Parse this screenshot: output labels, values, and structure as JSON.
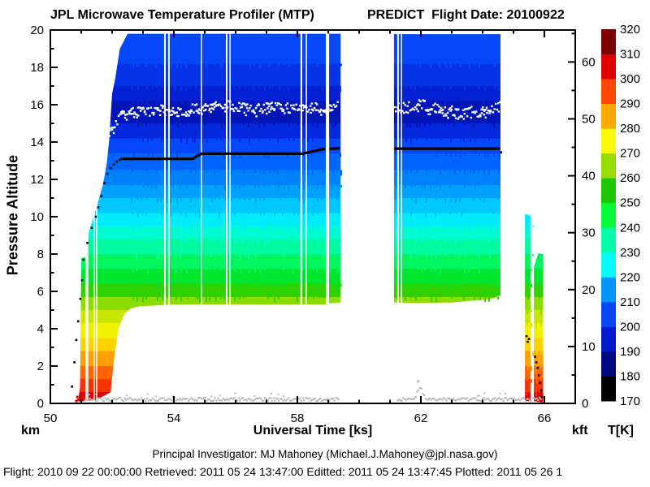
{
  "titles": {
    "left": "JPL Microwave Temperature Profiler (MTP)",
    "right": "PREDICT  Flight Date: 20100922"
  },
  "footer": {
    "line1": "Principal Investigator: MJ Mahoney (Michael.J.Mahoney@jpl.nasa.gov)",
    "line2": "Flight: 2010 09 22 00:00:00   Retrieved: 2011 05 24 13:47:00   Editted: 2011 05 24 13:47:45  Plotted: 2011 05 26 1"
  },
  "chart_data": {
    "type": "heatmap",
    "title": "JPL Microwave Temperature Profiler (MTP) - PREDICT Flight Date: 20100922",
    "x_axis": {
      "label": "Universal Time [ks]",
      "range": [
        50,
        67
      ],
      "major_ticks": [
        50,
        54,
        58,
        62,
        66
      ],
      "minor_step": 1
    },
    "y_axis_left": {
      "label": "Pressure Altitude",
      "unit": "km",
      "range": [
        0,
        20
      ],
      "major_ticks": [
        0,
        2,
        4,
        6,
        8,
        10,
        12,
        14,
        16,
        18,
        20
      ],
      "minor_step": 1
    },
    "y_axis_right": {
      "unit": "kft",
      "range": [
        0,
        65.6
      ],
      "major_ticks": [
        0,
        10,
        20,
        30,
        40,
        50,
        60
      ],
      "minor_step": 5
    },
    "colorbar": {
      "label": "T[K]",
      "range": [
        170,
        320
      ],
      "ticks": [
        170,
        180,
        190,
        200,
        210,
        220,
        230,
        240,
        250,
        260,
        270,
        280,
        290,
        300,
        310,
        320
      ],
      "band_colors_bottom_to_top": [
        "#000000",
        "#000882",
        "#0019cd",
        "#0747fa",
        "#0096ff",
        "#00ffff",
        "#00ffaa",
        "#00ff37",
        "#1ec800",
        "#96dc00",
        "#fafa00",
        "#ffa800",
        "#ff4800",
        "#e10000",
        "#7d0000"
      ]
    },
    "altitude_bands": [
      [
        20.0,
        18.2,
        "#0747fa"
      ],
      [
        18.2,
        17.0,
        "#0533e8"
      ],
      [
        17.0,
        16.2,
        "#0320d2"
      ],
      [
        16.2,
        15.0,
        "#0215b6"
      ],
      [
        15.0,
        14.2,
        "#0428dc"
      ],
      [
        14.2,
        13.4,
        "#0747fa"
      ],
      [
        13.4,
        12.5,
        "#0064ff"
      ],
      [
        12.5,
        11.7,
        "#0082ff"
      ],
      [
        11.7,
        11.0,
        "#00a0ff"
      ],
      [
        11.0,
        10.2,
        "#00c8ff"
      ],
      [
        10.2,
        9.5,
        "#00ecfa"
      ],
      [
        9.5,
        8.8,
        "#00fad2"
      ],
      [
        8.8,
        8.0,
        "#00faa0"
      ],
      [
        8.0,
        7.2,
        "#00f55f"
      ],
      [
        7.2,
        6.4,
        "#00e62e"
      ],
      [
        6.4,
        5.7,
        "#2fd200"
      ],
      [
        5.7,
        5.0,
        "#8cdc00"
      ],
      [
        5.0,
        4.3,
        "#c8e600"
      ],
      [
        4.3,
        3.5,
        "#f0f000"
      ],
      [
        3.5,
        2.8,
        "#ffd200"
      ],
      [
        2.8,
        2.0,
        "#ffa000"
      ],
      [
        2.0,
        1.3,
        "#ff6400"
      ],
      [
        1.3,
        0.6,
        "#f53200"
      ],
      [
        0.6,
        0.0,
        "#e10000"
      ]
    ],
    "segments": [
      {
        "name": "ascent-and-cruise-block",
        "polygon": [
          [
            50.9,
            0.1
          ],
          [
            50.96,
            0.9
          ],
          [
            51.0,
            7.8
          ],
          [
            51.12,
            7.8
          ],
          [
            51.25,
            9.2
          ],
          [
            51.4,
            10.0
          ],
          [
            51.55,
            10.8
          ],
          [
            51.7,
            11.7
          ],
          [
            51.82,
            12.8
          ],
          [
            51.9,
            14.0
          ],
          [
            52.0,
            16.6
          ],
          [
            52.1,
            17.4
          ],
          [
            52.25,
            19.0
          ],
          [
            52.5,
            19.8
          ],
          [
            58.92,
            19.8
          ],
          [
            58.92,
            5.3
          ],
          [
            54.0,
            5.3
          ],
          [
            52.9,
            5.2
          ],
          [
            52.62,
            5.1
          ],
          [
            52.4,
            4.8
          ],
          [
            52.2,
            4.0
          ],
          [
            52.05,
            2.2
          ],
          [
            51.95,
            0.6
          ],
          [
            51.5,
            0.2
          ],
          [
            51.1,
            0.12
          ]
        ]
      },
      {
        "name": "cruise-tail-strip",
        "polygon": [
          [
            59.03,
            19.8
          ],
          [
            59.4,
            19.8
          ],
          [
            59.4,
            5.4
          ],
          [
            59.03,
            5.35
          ]
        ]
      },
      {
        "name": "second-cruise-block",
        "polygon": [
          [
            61.13,
            19.78
          ],
          [
            64.58,
            19.78
          ],
          [
            64.58,
            5.8
          ],
          [
            64.3,
            5.6
          ],
          [
            63.0,
            5.4
          ],
          [
            61.7,
            5.38
          ],
          [
            61.13,
            5.4
          ]
        ]
      },
      {
        "name": "descent-strip-1",
        "polygon": [
          [
            65.37,
            10.15
          ],
          [
            65.55,
            10.05
          ],
          [
            65.55,
            0.1
          ],
          [
            65.37,
            0.15
          ]
        ]
      },
      {
        "name": "descent-strip-2",
        "polygon": [
          [
            65.66,
            7.3
          ],
          [
            65.8,
            8.05
          ],
          [
            65.96,
            8.0
          ],
          [
            65.96,
            0.05
          ],
          [
            65.66,
            0.12
          ]
        ]
      }
    ],
    "noise_cores": [
      [
        52.6,
        58.9,
        5.4,
        19.7
      ],
      [
        59.05,
        59.38,
        5.5,
        19.7
      ],
      [
        61.15,
        64.55,
        5.6,
        19.6
      ],
      [
        65.38,
        65.54,
        0.3,
        9.9
      ],
      [
        65.67,
        65.94,
        0.2,
        7.8
      ]
    ],
    "data_gaps": [
      [
        51.16,
        2
      ],
      [
        51.21,
        1.5
      ],
      [
        51.42,
        1.5
      ],
      [
        51.5,
        1.5
      ],
      [
        53.71,
        2
      ],
      [
        53.84,
        2
      ],
      [
        54.89,
        1.5
      ],
      [
        55.71,
        2
      ],
      [
        55.82,
        1.5
      ],
      [
        58.13,
        2
      ],
      [
        58.29,
        1.5
      ],
      [
        61.26,
        2
      ],
      [
        61.37,
        1.5
      ]
    ],
    "flight_track": {
      "climb_dots": [
        [
          50.7,
          0.9
        ],
        [
          50.78,
          2.2
        ],
        [
          50.84,
          3.4
        ],
        [
          50.9,
          4.4
        ],
        [
          50.97,
          5.6
        ],
        [
          51.03,
          6.6
        ],
        [
          51.08,
          7.7
        ],
        [
          51.2,
          8.6
        ],
        [
          51.34,
          9.4
        ],
        [
          51.47,
          10.0
        ],
        [
          51.55,
          10.5
        ],
        [
          51.65,
          11.1
        ],
        [
          51.75,
          11.8
        ],
        [
          51.85,
          12.3
        ],
        [
          51.95,
          12.6
        ],
        [
          52.05,
          12.8
        ],
        [
          52.15,
          12.95
        ],
        [
          52.25,
          13.05
        ]
      ],
      "cruise_lines": [
        [
          [
            52.28,
            13.1
          ],
          [
            54.6,
            13.1
          ],
          [
            54.75,
            13.25
          ],
          [
            54.9,
            13.38
          ],
          [
            58.18,
            13.38
          ],
          [
            58.5,
            13.5
          ],
          [
            58.75,
            13.6
          ],
          [
            58.9,
            13.63
          ]
        ],
        [
          [
            59.05,
            13.64
          ],
          [
            59.38,
            13.67
          ]
        ],
        [
          [
            61.14,
            13.65
          ],
          [
            64.56,
            13.65
          ]
        ]
      ],
      "descent_dots": [
        [
          64.6,
          13.45
        ],
        [
          65.42,
          3.6
        ],
        [
          65.46,
          3.3
        ],
        [
          65.5,
          3.45
        ],
        [
          65.7,
          2.5
        ],
        [
          65.74,
          2.2
        ],
        [
          65.78,
          1.9
        ],
        [
          65.82,
          1.5
        ],
        [
          65.86,
          1.1
        ],
        [
          65.9,
          0.7
        ],
        [
          65.93,
          0.35
        ]
      ]
    },
    "tropopause_trace": [
      [
        [
          50.95,
          12.2
        ],
        [
          51.25,
          12.7
        ],
        [
          51.55,
          13.4
        ],
        [
          51.85,
          14.4
        ],
        [
          52.1,
          15.0
        ],
        [
          52.35,
          15.45
        ],
        [
          52.8,
          15.6
        ],
        [
          53.4,
          15.7
        ],
        [
          54.2,
          15.72
        ],
        [
          55.0,
          15.8
        ],
        [
          55.6,
          15.98
        ],
        [
          56.1,
          15.85
        ],
        [
          56.6,
          15.75
        ],
        [
          57.2,
          15.85
        ],
        [
          57.8,
          15.78
        ],
        [
          58.4,
          15.8
        ],
        [
          59.0,
          15.85
        ],
        [
          59.35,
          15.9
        ]
      ],
      [
        [
          61.15,
          15.78
        ],
        [
          61.55,
          15.85
        ],
        [
          61.95,
          16.08
        ],
        [
          62.35,
          15.82
        ],
        [
          62.75,
          15.62
        ],
        [
          63.15,
          15.5
        ],
        [
          63.55,
          15.55
        ],
        [
          63.95,
          15.62
        ],
        [
          64.35,
          15.8
        ],
        [
          64.55,
          15.88
        ]
      ]
    ],
    "surface_trace": {
      "segments": [
        [
          51.1,
          59.38
        ],
        [
          61.25,
          65.92
        ]
      ],
      "base_alt": 0.22,
      "bump_t": 61.97,
      "bump_height": 0.62,
      "spike": [
        61.87,
        1.25
      ]
    },
    "ground_marks": [
      [
        50.84,
        0.12
      ],
      [
        50.87,
        0.35
      ],
      [
        50.9,
        0.2
      ],
      [
        65.9,
        0.12
      ]
    ]
  }
}
